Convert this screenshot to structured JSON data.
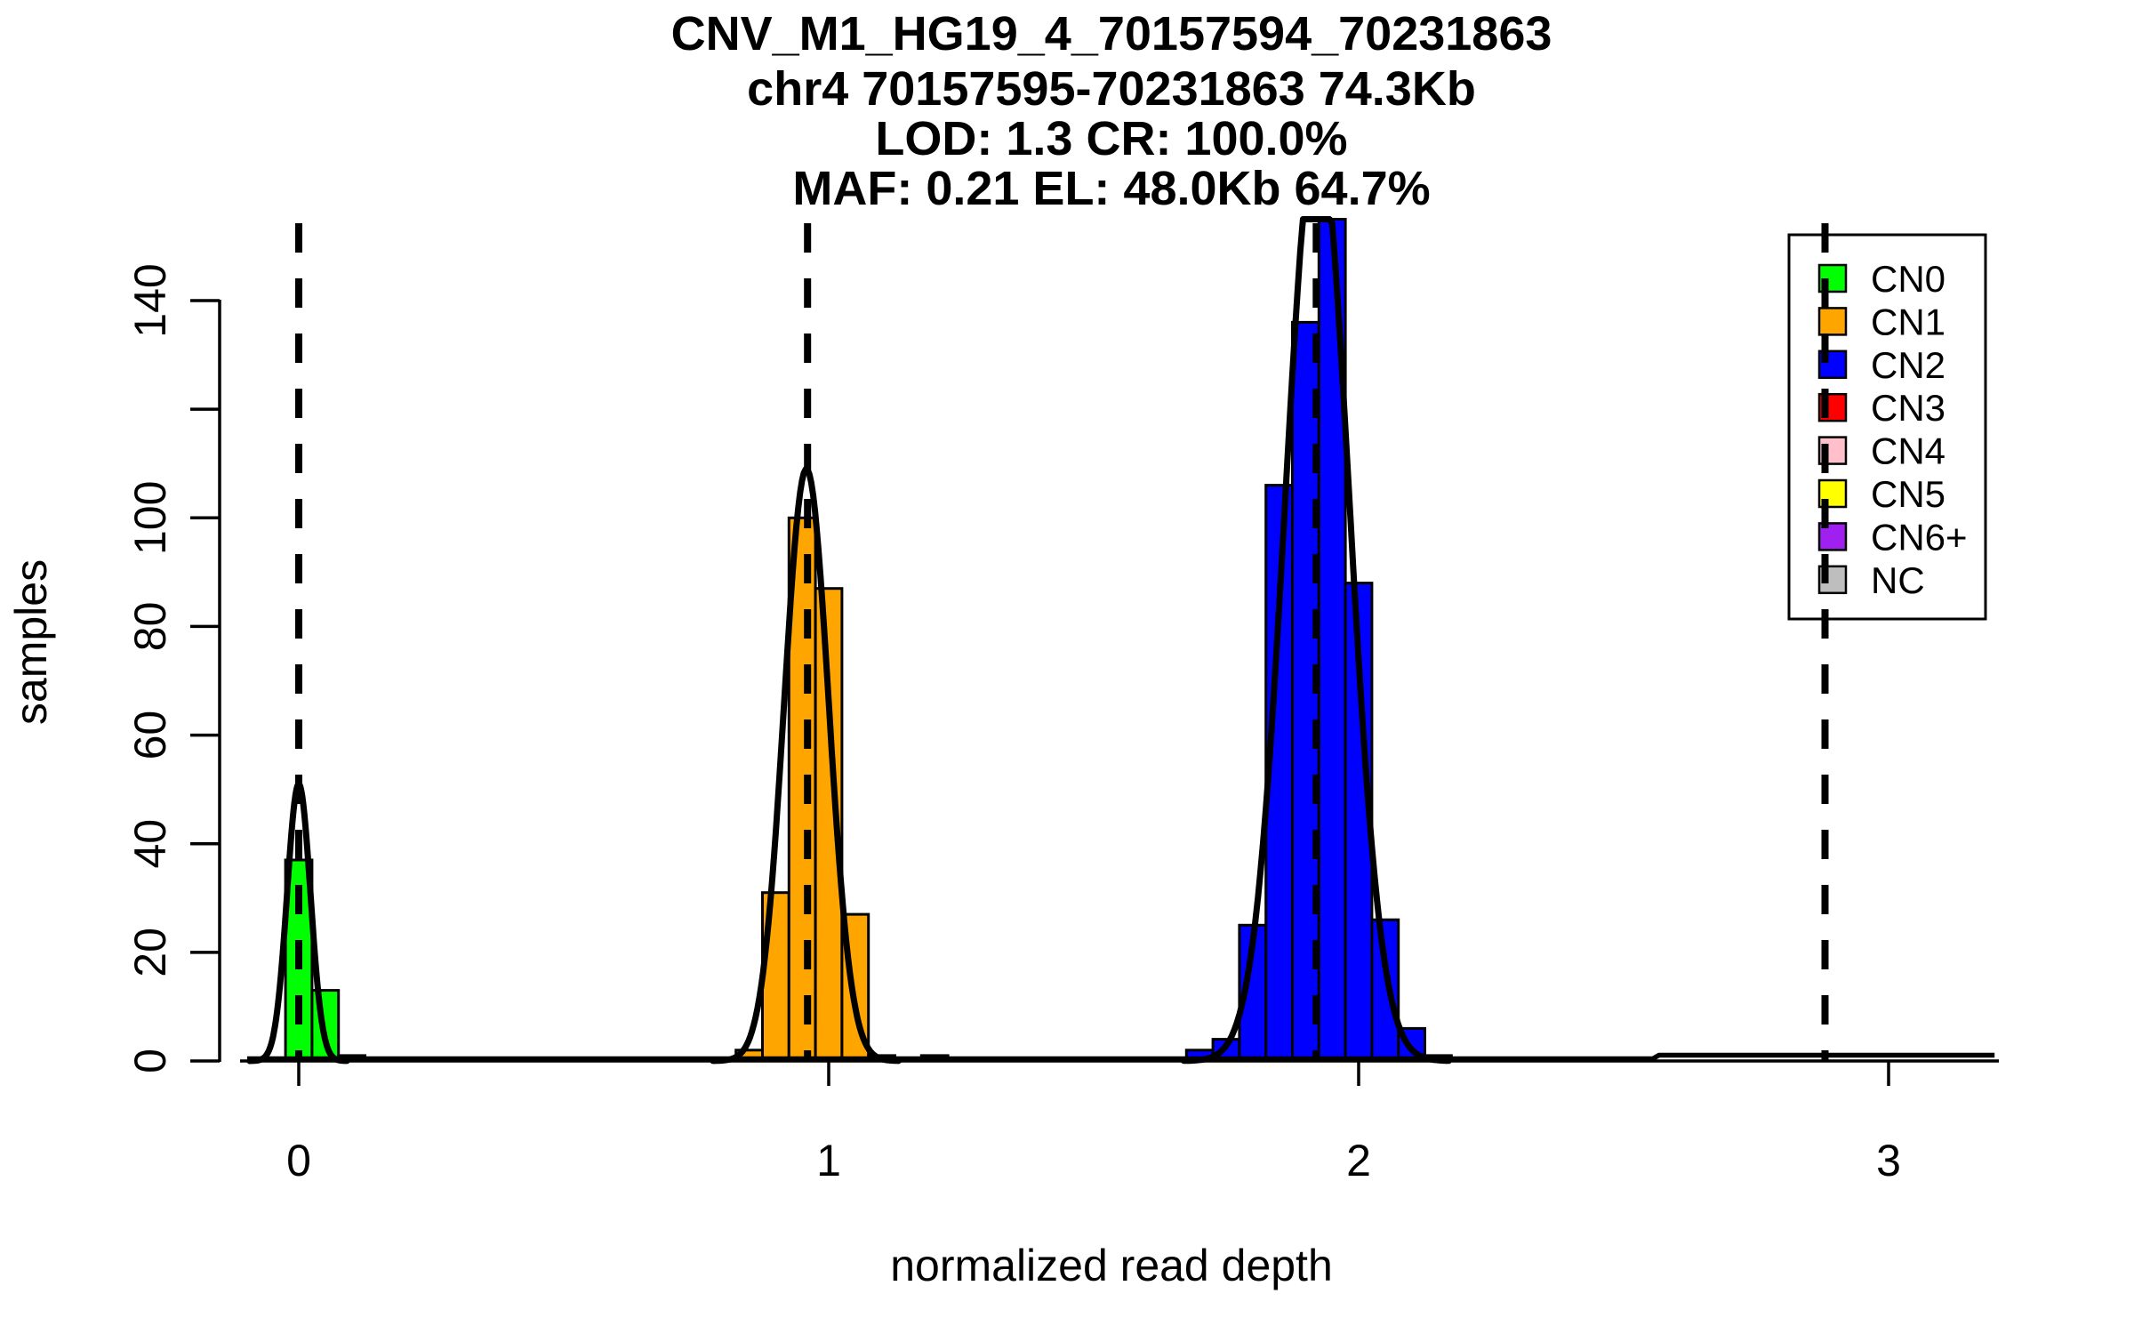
{
  "title": {
    "line1": "CNV_M1_HG19_4_70157594_70231863",
    "line2": "chr4 70157595-70231863 74.3Kb",
    "line3": "LOD: 1.3 CR: 100.0%",
    "line4": "MAF: 0.21 EL: 48.0Kb 64.7%"
  },
  "chart_data": {
    "type": "bar",
    "subtype": "histogram-with-density-curves",
    "title": "CNV_M1_HG19_4_70157594_70231863 / chr4 70157595-70231863 74.3Kb / LOD: 1.3 CR: 100.0% / MAF: 0.21 EL: 48.0Kb 64.7%",
    "xlabel": "normalized read depth",
    "ylabel": "samples",
    "xlim": [
      -0.12,
      3.21
    ],
    "ylim": [
      0,
      155
    ],
    "grid": false,
    "bin_width": 0.05,
    "x_ticks": [
      0,
      1,
      2,
      3
    ],
    "y_ticks": [
      0,
      20,
      40,
      60,
      80,
      100,
      120,
      140
    ],
    "y_tick_labels": [
      "0",
      "20",
      "40",
      "60",
      "80",
      "100",
      "",
      "140"
    ],
    "series": [
      {
        "name": "CN0",
        "color": "#00FF00",
        "bins": [
          {
            "x0": -0.025,
            "count": 37
          },
          {
            "x0": 0.025,
            "count": 13
          },
          {
            "x0": 0.075,
            "count": 1
          }
        ]
      },
      {
        "name": "CN1",
        "color": "#FFA500",
        "bins": [
          {
            "x0": 0.825,
            "count": 2
          },
          {
            "x0": 0.875,
            "count": 31
          },
          {
            "x0": 0.925,
            "count": 100
          },
          {
            "x0": 0.975,
            "count": 87
          },
          {
            "x0": 1.025,
            "count": 27
          },
          {
            "x0": 1.075,
            "count": 1
          },
          {
            "x0": 1.175,
            "count": 1
          }
        ]
      },
      {
        "name": "CN2",
        "color": "#0000FF",
        "bins": [
          {
            "x0": 1.675,
            "count": 2
          },
          {
            "x0": 1.725,
            "count": 4
          },
          {
            "x0": 1.775,
            "count": 25
          },
          {
            "x0": 1.825,
            "count": 106
          },
          {
            "x0": 1.875,
            "count": 136
          },
          {
            "x0": 1.925,
            "count": 155
          },
          {
            "x0": 1.975,
            "count": 88
          },
          {
            "x0": 2.025,
            "count": 26
          },
          {
            "x0": 2.075,
            "count": 6
          },
          {
            "x0": 2.125,
            "count": 1
          }
        ]
      }
    ],
    "density_curves": [
      {
        "name": "CN0-density",
        "mean": 0.0,
        "sd": 0.022,
        "peak": 51
      },
      {
        "name": "CN1-density",
        "mean": 0.958,
        "sd": 0.042,
        "peak": 109
      },
      {
        "name": "CN2-density",
        "mean": 1.922,
        "sd": 0.06,
        "peak": 172
      }
    ],
    "flat_density_segment": {
      "x0": 2.56,
      "x1": 3.2,
      "height": 1
    },
    "mean_markers": [
      0.0,
      0.96,
      1.92,
      2.88
    ],
    "legend_position": "top-right"
  },
  "legend": {
    "items": [
      {
        "label": "CN0",
        "color": "#00FF00"
      },
      {
        "label": "CN1",
        "color": "#FFA500"
      },
      {
        "label": "CN2",
        "color": "#0000FF"
      },
      {
        "label": "CN3",
        "color": "#FF0000"
      },
      {
        "label": "CN4",
        "color": "#FFC0CB"
      },
      {
        "label": "CN5",
        "color": "#FFFF00"
      },
      {
        "label": "CN6+",
        "color": "#A020F0"
      },
      {
        "label": "NC",
        "color": "#BEBEBE"
      }
    ]
  }
}
